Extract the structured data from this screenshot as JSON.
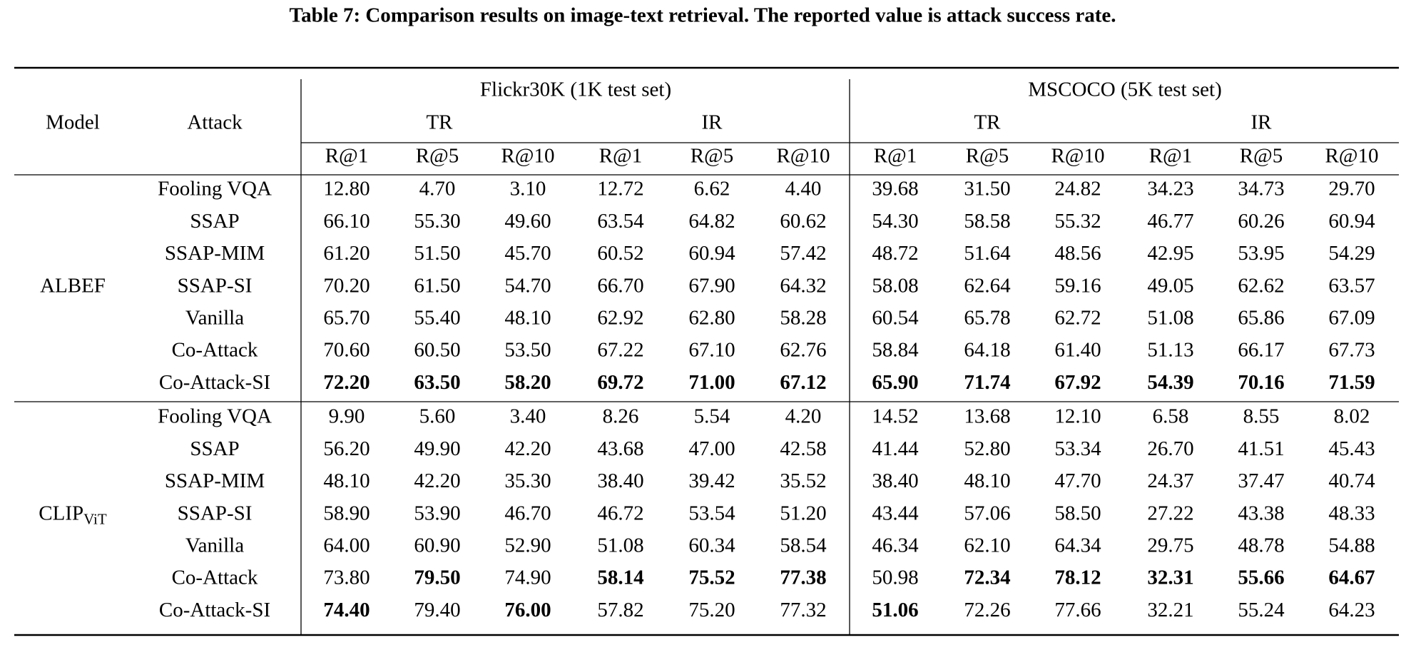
{
  "title": "Table 7: Comparison results on image-text retrieval. The reported value is attack success rate.",
  "table": {
    "header": {
      "model": "Model",
      "attack": "Attack",
      "datasets": [
        {
          "name": "Flickr30K (1K test set)",
          "tasks": [
            {
              "name": "TR",
              "metrics": [
                "R@1",
                "R@5",
                "R@10"
              ]
            },
            {
              "name": "IR",
              "metrics": [
                "R@1",
                "R@5",
                "R@10"
              ]
            }
          ]
        },
        {
          "name": "MSCOCO (5K test set)",
          "tasks": [
            {
              "name": "TR",
              "metrics": [
                "R@1",
                "R@5",
                "R@10"
              ]
            },
            {
              "name": "IR",
              "metrics": [
                "R@1",
                "R@5",
                "R@10"
              ]
            }
          ]
        }
      ]
    },
    "groups": [
      {
        "model": {
          "text": "ALBEF"
        },
        "rows": [
          {
            "attack": "Fooling VQA",
            "values": [
              "12.80",
              "4.70",
              "3.10",
              "12.72",
              "6.62",
              "4.40",
              "39.68",
              "31.50",
              "24.82",
              "34.23",
              "34.73",
              "29.70"
            ],
            "bold": []
          },
          {
            "attack": "SSAP",
            "values": [
              "66.10",
              "55.30",
              "49.60",
              "63.54",
              "64.82",
              "60.62",
              "54.30",
              "58.58",
              "55.32",
              "46.77",
              "60.26",
              "60.94"
            ],
            "bold": []
          },
          {
            "attack": "SSAP-MIM",
            "values": [
              "61.20",
              "51.50",
              "45.70",
              "60.52",
              "60.94",
              "57.42",
              "48.72",
              "51.64",
              "48.56",
              "42.95",
              "53.95",
              "54.29"
            ],
            "bold": []
          },
          {
            "attack": "SSAP-SI",
            "values": [
              "70.20",
              "61.50",
              "54.70",
              "66.70",
              "67.90",
              "64.32",
              "58.08",
              "62.64",
              "59.16",
              "49.05",
              "62.62",
              "63.57"
            ],
            "bold": []
          },
          {
            "attack": "Vanilla",
            "values": [
              "65.70",
              "55.40",
              "48.10",
              "62.92",
              "62.80",
              "58.28",
              "60.54",
              "65.78",
              "62.72",
              "51.08",
              "65.86",
              "67.09"
            ],
            "bold": []
          },
          {
            "attack": "Co-Attack",
            "values": [
              "70.60",
              "60.50",
              "53.50",
              "67.22",
              "67.10",
              "62.76",
              "58.84",
              "64.18",
              "61.40",
              "51.13",
              "66.17",
              "67.73"
            ],
            "bold": []
          },
          {
            "attack": "Co-Attack-SI",
            "values": [
              "72.20",
              "63.50",
              "58.20",
              "69.72",
              "71.00",
              "67.12",
              "65.90",
              "71.74",
              "67.92",
              "54.39",
              "70.16",
              "71.59"
            ],
            "bold": [
              0,
              1,
              2,
              3,
              4,
              5,
              6,
              7,
              8,
              9,
              10,
              11
            ]
          }
        ]
      },
      {
        "model": {
          "text": "CLIP",
          "sub": "ViT"
        },
        "rows": [
          {
            "attack": "Fooling VQA",
            "values": [
              "9.90",
              "5.60",
              "3.40",
              "8.26",
              "5.54",
              "4.20",
              "14.52",
              "13.68",
              "12.10",
              "6.58",
              "8.55",
              "8.02"
            ],
            "bold": []
          },
          {
            "attack": "SSAP",
            "values": [
              "56.20",
              "49.90",
              "42.20",
              "43.68",
              "47.00",
              "42.58",
              "41.44",
              "52.80",
              "53.34",
              "26.70",
              "41.51",
              "45.43"
            ],
            "bold": []
          },
          {
            "attack": "SSAP-MIM",
            "values": [
              "48.10",
              "42.20",
              "35.30",
              "38.40",
              "39.42",
              "35.52",
              "38.40",
              "48.10",
              "47.70",
              "24.37",
              "37.47",
              "40.74"
            ],
            "bold": []
          },
          {
            "attack": "SSAP-SI",
            "values": [
              "58.90",
              "53.90",
              "46.70",
              "46.72",
              "53.54",
              "51.20",
              "43.44",
              "57.06",
              "58.50",
              "27.22",
              "43.38",
              "48.33"
            ],
            "bold": []
          },
          {
            "attack": "Vanilla",
            "values": [
              "64.00",
              "60.90",
              "52.90",
              "51.08",
              "60.34",
              "58.54",
              "46.34",
              "62.10",
              "64.34",
              "29.75",
              "48.78",
              "54.88"
            ],
            "bold": []
          },
          {
            "attack": "Co-Attack",
            "values": [
              "73.80",
              "79.50",
              "74.90",
              "58.14",
              "75.52",
              "77.38",
              "50.98",
              "72.34",
              "78.12",
              "32.31",
              "55.66",
              "64.67"
            ],
            "bold": [
              1,
              3,
              4,
              5,
              7,
              8,
              9,
              10,
              11
            ]
          },
          {
            "attack": "Co-Attack-SI",
            "values": [
              "74.40",
              "79.40",
              "76.00",
              "57.82",
              "75.20",
              "77.32",
              "51.06",
              "72.26",
              "77.66",
              "32.21",
              "55.24",
              "64.23"
            ],
            "bold": [
              0,
              2,
              6
            ]
          }
        ]
      }
    ]
  }
}
